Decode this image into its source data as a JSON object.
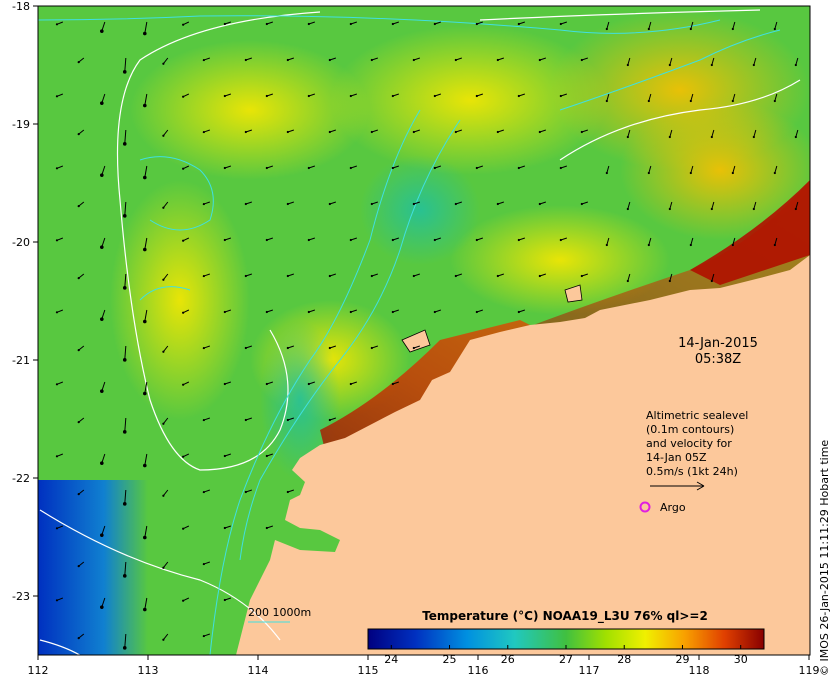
{
  "map": {
    "longitude_ticks": [
      "112",
      "113",
      "114",
      "115",
      "116",
      "117",
      "118",
      "119"
    ],
    "latitude_ticks": [
      "-18",
      "-19",
      "-20",
      "-21",
      "-22",
      "-23"
    ],
    "date": "14-Jan-2015",
    "time": "05:38Z",
    "altimetry_info": {
      "line1": "Altimetric sealevel",
      "line2": "(0.1m contours)",
      "line3": "and velocity for",
      "line4": "14-Jan 05Z",
      "line5": "0.5m/s (1kt 24h)"
    },
    "argo_label": "Argo",
    "bathymetry_label": "200  1000m",
    "colorbar": {
      "title": "Temperature (°C) NOAA19_L3U 76% ql>=2",
      "ticks": [
        "24",
        "25",
        "26",
        "27",
        "28",
        "29",
        "30"
      ],
      "range": [
        23.6,
        30.4
      ]
    },
    "credit": "© IMOS 26-Jan-2015 11:11:29 Hobart time",
    "colors": {
      "land": "#fcc89b",
      "argo": "#e020e0",
      "contour": "#ffffff",
      "isobath": "#40e0e0"
    }
  }
}
